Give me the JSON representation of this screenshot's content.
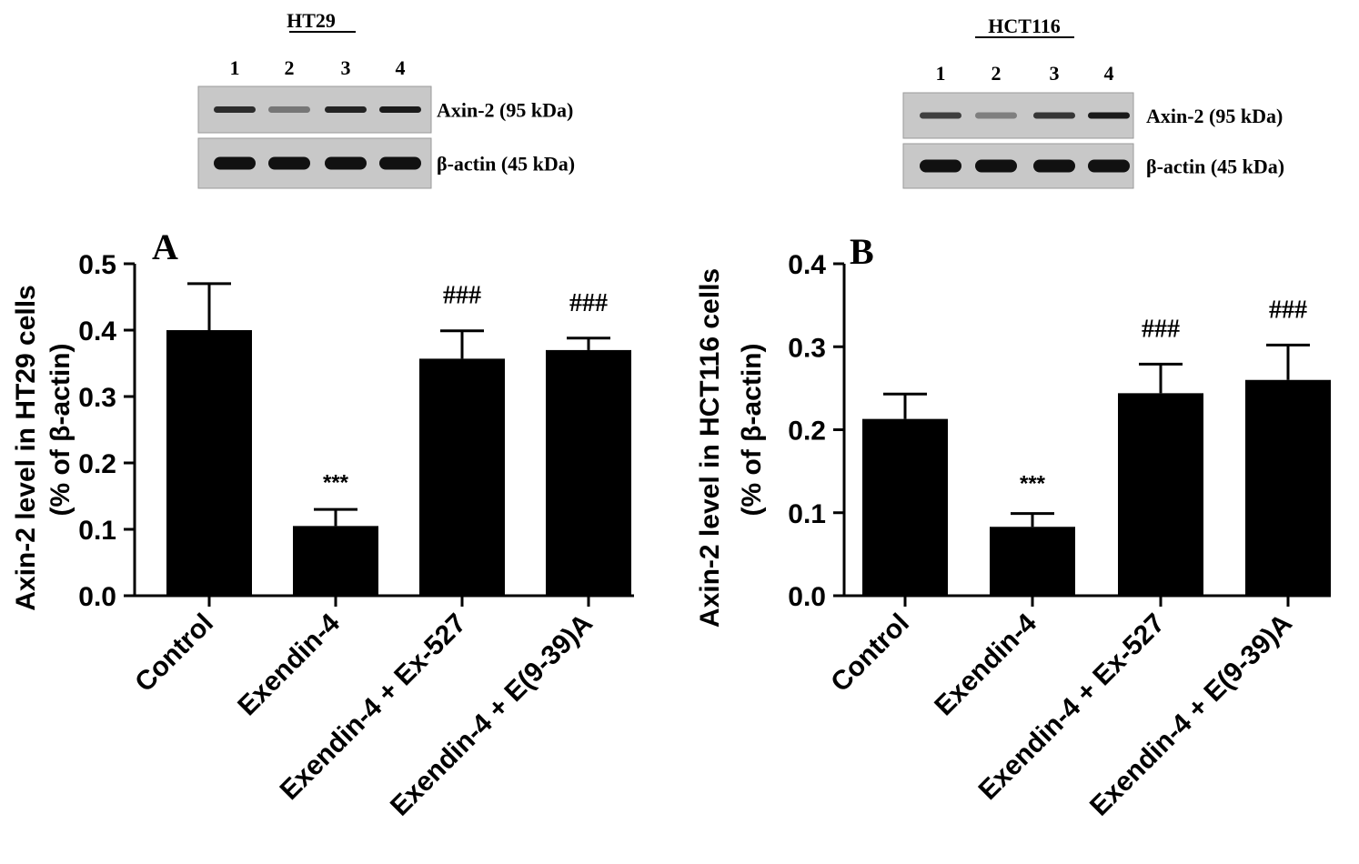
{
  "colors": {
    "bar": "#000000",
    "blot_bg": "#c8c8c8",
    "band": "#111111",
    "text": "#000000"
  },
  "blots": [
    {
      "title": "HT29",
      "lanes": [
        "1",
        "2",
        "3",
        "4"
      ],
      "rows": [
        {
          "label": "Axin-2 (95 kDa)",
          "intensity": [
            0.85,
            0.45,
            0.9,
            0.95
          ]
        },
        {
          "label": "β-actin (45 kDa)",
          "intensity": [
            1.0,
            1.0,
            1.0,
            1.0
          ]
        }
      ]
    },
    {
      "title": "HCT116",
      "lanes": [
        "1",
        "2",
        "3",
        "4"
      ],
      "rows": [
        {
          "label": "Axin-2 (95 kDa)",
          "intensity": [
            0.75,
            0.4,
            0.8,
            0.95
          ]
        },
        {
          "label": "β-actin (45 kDa)",
          "intensity": [
            1.0,
            1.0,
            1.0,
            1.0
          ]
        }
      ]
    }
  ],
  "chart_data": [
    {
      "type": "bar",
      "panel": "A",
      "categories": [
        "Control",
        "Exendin-4",
        "Exendin-4 + Ex-527",
        "Exendin-4 + E(9-39)A"
      ],
      "values": [
        0.4,
        0.105,
        0.357,
        0.37
      ],
      "errors": [
        0.07,
        0.025,
        0.042,
        0.018
      ],
      "annotations": [
        "",
        "***",
        "###",
        "###"
      ],
      "ylabel": "Axin-2 level in HT29 cells",
      "ylabel2": "(% of β-actin)",
      "ylim": [
        0,
        0.5
      ],
      "yticks": [
        "0.0",
        "0.1",
        "0.2",
        "0.3",
        "0.4",
        "0.5"
      ]
    },
    {
      "type": "bar",
      "panel": "B",
      "categories": [
        "Control",
        "Exendin-4",
        "Exendin-4 + Ex-527",
        "Exendin-4 + E(9-39)A"
      ],
      "values": [
        0.213,
        0.083,
        0.244,
        0.26
      ],
      "errors": [
        0.03,
        0.016,
        0.035,
        0.042
      ],
      "annotations": [
        "",
        "***",
        "###",
        "###"
      ],
      "ylabel": "Axin-2 level in HCT116 cells",
      "ylabel2": "(% of β-actin)",
      "ylim": [
        0,
        0.4
      ],
      "yticks": [
        "0.0",
        "0.1",
        "0.2",
        "0.3",
        "0.4"
      ]
    }
  ]
}
